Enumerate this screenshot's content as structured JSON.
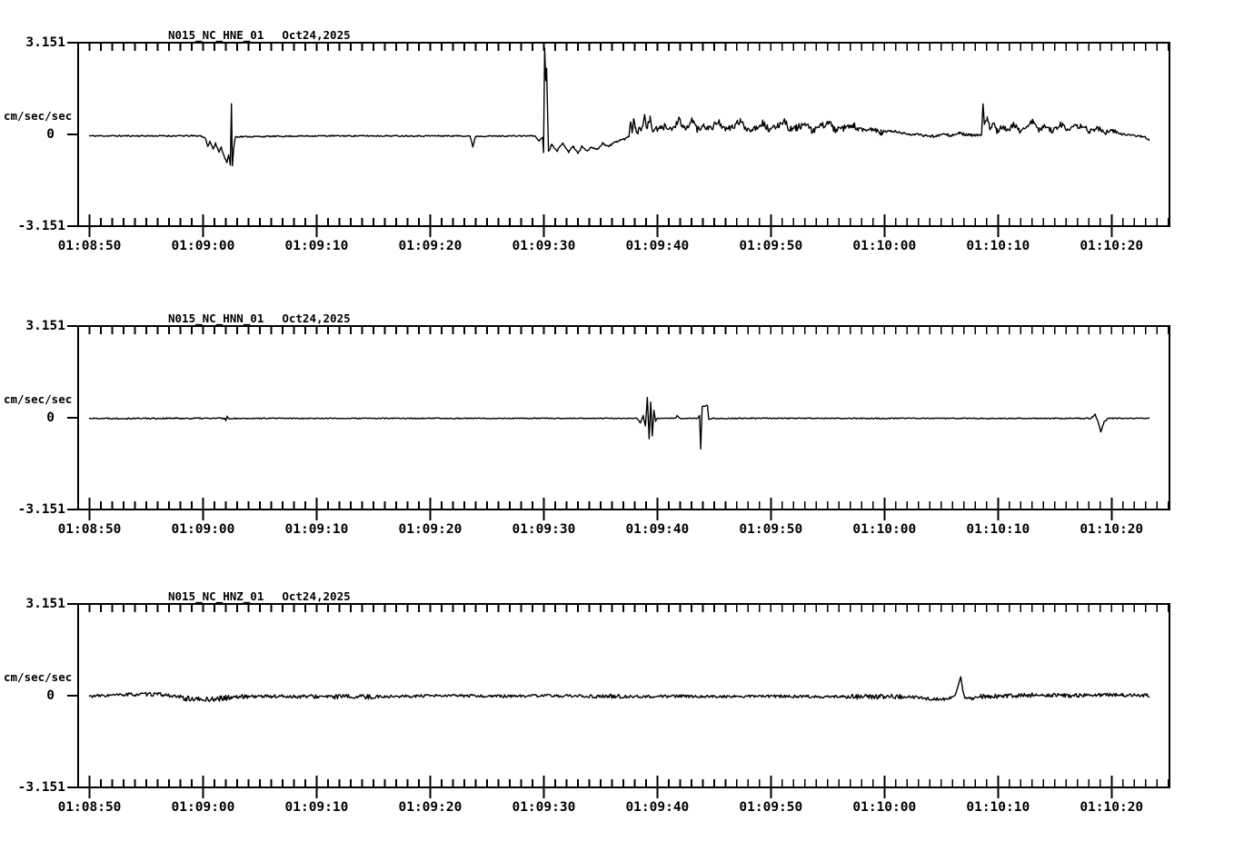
{
  "page": {
    "background_color": "#ffffff",
    "foreground_color": "#000000",
    "description_labels": []
  },
  "chart_data": [
    {
      "type": "line",
      "title": "N015_NC_HNE_01",
      "date": "Oct24,2025",
      "y_axis": {
        "unit_label": "cm/sec/sec",
        "max_label": "3.151",
        "zero_label": "0",
        "min_label": "-3.151",
        "ylim": [
          -3.151,
          3.151
        ]
      },
      "x_axis": {
        "tick_labels": [
          "01:08:50",
          "01:09:00",
          "01:09:10",
          "01:09:20",
          "01:09:30",
          "01:09:40",
          "01:09:50",
          "01:10:00",
          "01:10:10",
          "01:10:20"
        ],
        "tick_seconds": [
          50,
          60,
          70,
          80,
          90,
          100,
          110,
          120,
          130,
          140
        ],
        "window_seconds_after_010800": [
          49.0,
          145.1
        ],
        "minor_tick_interval_sec": 1,
        "major_tick_interval_sec": 10,
        "grid": false
      },
      "trace": {
        "color": "#000000",
        "seed": 11,
        "start_sec": 50,
        "end_sec": 143.3,
        "default_noise": 0.022,
        "noise_envelope": [
          [
            50,
            59.8,
            0.025
          ],
          [
            63,
            89,
            0.022
          ],
          [
            90.5,
            97.5,
            0.035
          ],
          [
            97.6,
            120,
            0.11
          ],
          [
            120,
            128.6,
            0.045
          ],
          [
            128.7,
            140.5,
            0.09
          ],
          [
            140.5,
            143.3,
            0.03
          ]
        ],
        "keypoints": [
          [
            50,
            -0.05
          ],
          [
            59.8,
            -0.05
          ],
          [
            60.2,
            -0.12
          ],
          [
            60.4,
            -0.42
          ],
          [
            60.6,
            -0.25
          ],
          [
            60.9,
            -0.5
          ],
          [
            61.1,
            -0.3
          ],
          [
            61.4,
            -0.62
          ],
          [
            61.6,
            -0.45
          ],
          [
            61.9,
            -0.8
          ],
          [
            62.1,
            -0.95
          ],
          [
            62.25,
            -0.7
          ],
          [
            62.4,
            -1.05
          ],
          [
            62.5,
            1.05
          ],
          [
            62.58,
            -1.1
          ],
          [
            62.7,
            -0.45
          ],
          [
            62.85,
            -0.08
          ],
          [
            70,
            -0.05
          ],
          [
            80,
            -0.05
          ],
          [
            83.5,
            -0.05
          ],
          [
            83.75,
            -0.42
          ],
          [
            84.0,
            -0.06
          ],
          [
            89.2,
            -0.05
          ],
          [
            89.6,
            -0.22
          ],
          [
            89.9,
            -0.1
          ],
          [
            89.98,
            -0.62
          ],
          [
            90.08,
            2.95
          ],
          [
            90.18,
            1.85
          ],
          [
            90.25,
            2.25
          ],
          [
            90.42,
            -0.58
          ],
          [
            90.7,
            -0.35
          ],
          [
            91.2,
            -0.55
          ],
          [
            91.7,
            -0.3
          ],
          [
            92.2,
            -0.6
          ],
          [
            92.6,
            -0.4
          ],
          [
            93.0,
            -0.65
          ],
          [
            93.4,
            -0.4
          ],
          [
            93.8,
            -0.58
          ],
          [
            94.2,
            -0.42
          ],
          [
            94.7,
            -0.52
          ],
          [
            95.2,
            -0.3
          ],
          [
            95.7,
            -0.42
          ],
          [
            96.2,
            -0.28
          ],
          [
            96.7,
            -0.2
          ],
          [
            97.2,
            -0.15
          ],
          [
            97.5,
            -0.06
          ],
          [
            97.65,
            0.5
          ],
          [
            97.78,
            0.12
          ],
          [
            97.92,
            0.58
          ],
          [
            98.05,
            0.18
          ],
          [
            98.3,
            0.12
          ],
          [
            98.6,
            0.2
          ],
          [
            98.9,
            0.62
          ],
          [
            99.1,
            0.18
          ],
          [
            99.35,
            0.55
          ],
          [
            99.6,
            0.15
          ],
          [
            100.2,
            0.18
          ],
          [
            100.8,
            0.3
          ],
          [
            101.3,
            0.15
          ],
          [
            101.9,
            0.5
          ],
          [
            102.3,
            0.18
          ],
          [
            102.8,
            0.3
          ],
          [
            103.1,
            0.52
          ],
          [
            103.5,
            0.15
          ],
          [
            104.2,
            0.28
          ],
          [
            104.8,
            0.2
          ],
          [
            105.4,
            0.48
          ],
          [
            105.9,
            0.15
          ],
          [
            106.6,
            0.25
          ],
          [
            107.3,
            0.45
          ],
          [
            107.9,
            0.18
          ],
          [
            108.6,
            0.22
          ],
          [
            109.3,
            0.4
          ],
          [
            109.9,
            0.12
          ],
          [
            110.6,
            0.3
          ],
          [
            111.2,
            0.5
          ],
          [
            111.6,
            0.18
          ],
          [
            112.2,
            0.22
          ],
          [
            113.0,
            0.35
          ],
          [
            113.6,
            0.12
          ],
          [
            114.4,
            0.28
          ],
          [
            115.1,
            0.42
          ],
          [
            115.7,
            0.12
          ],
          [
            116.5,
            0.22
          ],
          [
            117.3,
            0.3
          ],
          [
            118.1,
            0.1
          ],
          [
            118.9,
            0.18
          ],
          [
            119.7,
            0.06
          ],
          [
            120.6,
            0.12
          ],
          [
            121.6,
            0.04
          ],
          [
            122.6,
            0.0
          ],
          [
            123.6,
            -0.04
          ],
          [
            124.6,
            -0.07
          ],
          [
            125.2,
            0.06
          ],
          [
            125.8,
            -0.05
          ],
          [
            126.6,
            0.04
          ],
          [
            127.4,
            -0.02
          ],
          [
            128.2,
            -0.04
          ],
          [
            128.55,
            -0.02
          ],
          [
            128.68,
            1.06
          ],
          [
            128.8,
            0.28
          ],
          [
            129.05,
            0.55
          ],
          [
            129.3,
            0.18
          ],
          [
            129.6,
            0.45
          ],
          [
            129.9,
            0.12
          ],
          [
            130.4,
            0.3
          ],
          [
            130.9,
            0.12
          ],
          [
            131.4,
            0.35
          ],
          [
            131.9,
            0.1
          ],
          [
            132.5,
            0.28
          ],
          [
            133.1,
            0.45
          ],
          [
            133.6,
            0.12
          ],
          [
            134.2,
            0.3
          ],
          [
            134.8,
            0.1
          ],
          [
            135.5,
            0.38
          ],
          [
            136.1,
            0.12
          ],
          [
            136.7,
            0.25
          ],
          [
            137.4,
            0.3
          ],
          [
            138.1,
            0.1
          ],
          [
            138.8,
            0.22
          ],
          [
            139.5,
            0.06
          ],
          [
            140.2,
            0.1
          ],
          [
            141.0,
            0.0
          ],
          [
            141.8,
            -0.03
          ],
          [
            142.6,
            -0.06
          ],
          [
            143.0,
            -0.1
          ],
          [
            143.3,
            -0.18
          ]
        ]
      }
    },
    {
      "type": "line",
      "title": "N015_NC_HNN_01",
      "date": "Oct24,2025",
      "y_axis": {
        "unit_label": "cm/sec/sec",
        "max_label": "3.151",
        "zero_label": "0",
        "min_label": "-3.151",
        "ylim": [
          -3.151,
          3.151
        ]
      },
      "x_axis": {
        "tick_labels": [
          "01:08:50",
          "01:09:00",
          "01:09:10",
          "01:09:20",
          "01:09:30",
          "01:09:40",
          "01:09:50",
          "01:10:00",
          "01:10:10",
          "01:10:20"
        ],
        "tick_seconds": [
          50,
          60,
          70,
          80,
          90,
          100,
          110,
          120,
          130,
          140
        ],
        "window_seconds_after_010800": [
          49.0,
          145.1
        ],
        "minor_tick_interval_sec": 1,
        "major_tick_interval_sec": 10,
        "grid": false
      },
      "trace": {
        "color": "#000000",
        "seed": 22,
        "start_sec": 50,
        "end_sec": 143.3,
        "default_noise": 0.016,
        "noise_envelope": [
          [
            51.5,
            63,
            0.026
          ],
          [
            61.8,
            62.4,
            0.05
          ],
          [
            104.8,
            110,
            0.022
          ],
          [
            117,
            120,
            0.022
          ],
          [
            135,
            141,
            0.02
          ]
        ],
        "keypoints": [
          [
            50,
            -0.02
          ],
          [
            61.85,
            -0.02
          ],
          [
            62.0,
            -0.08
          ],
          [
            62.1,
            0.04
          ],
          [
            62.2,
            -0.02
          ],
          [
            98.2,
            -0.02
          ],
          [
            98.5,
            -0.18
          ],
          [
            98.75,
            0.08
          ],
          [
            98.95,
            -0.28
          ],
          [
            99.12,
            0.68
          ],
          [
            99.28,
            -0.72
          ],
          [
            99.42,
            0.55
          ],
          [
            99.56,
            -0.62
          ],
          [
            99.7,
            0.25
          ],
          [
            99.85,
            -0.12
          ],
          [
            100.0,
            -0.02
          ],
          [
            101.6,
            -0.02
          ],
          [
            101.75,
            0.07
          ],
          [
            101.95,
            -0.02
          ],
          [
            103.6,
            -0.02
          ],
          [
            103.72,
            0.08
          ],
          [
            103.82,
            -1.08
          ],
          [
            103.95,
            0.4
          ],
          [
            104.42,
            0.42
          ],
          [
            104.52,
            -0.05
          ],
          [
            104.8,
            -0.02
          ],
          [
            138.2,
            -0.02
          ],
          [
            138.55,
            0.12
          ],
          [
            138.85,
            -0.18
          ],
          [
            139.05,
            -0.48
          ],
          [
            139.35,
            -0.14
          ],
          [
            139.7,
            -0.02
          ],
          [
            143.3,
            -0.02
          ]
        ]
      }
    },
    {
      "type": "line",
      "title": "N015_NC_HNZ_01",
      "date": "Oct24,2025",
      "y_axis": {
        "unit_label": "cm/sec/sec",
        "max_label": "3.151",
        "zero_label": "0",
        "min_label": "-3.151",
        "ylim": [
          -3.151,
          3.151
        ]
      },
      "x_axis": {
        "tick_labels": [
          "01:08:50",
          "01:09:00",
          "01:09:10",
          "01:09:20",
          "01:09:30",
          "01:09:40",
          "01:09:50",
          "01:10:00",
          "01:10:10",
          "01:10:20"
        ],
        "tick_seconds": [
          50,
          60,
          70,
          80,
          90,
          100,
          110,
          120,
          130,
          140
        ],
        "window_seconds_after_010800": [
          49.0,
          145.1
        ],
        "minor_tick_interval_sec": 1,
        "major_tick_interval_sec": 10,
        "grid": false
      },
      "trace": {
        "color": "#000000",
        "seed": 33,
        "start_sec": 50,
        "end_sec": 143.3,
        "default_noise": 0.05,
        "noise_envelope": [
          [
            53,
            57,
            0.065
          ],
          [
            58,
            62.5,
            0.09
          ],
          [
            63,
            70,
            0.07
          ],
          [
            71.5,
            75.5,
            0.08
          ],
          [
            94,
            97,
            0.075
          ],
          [
            117,
            121.5,
            0.085
          ],
          [
            126.3,
            127.2,
            0.02
          ],
          [
            128.5,
            133,
            0.075
          ],
          [
            134,
            138,
            0.07
          ],
          [
            139,
            143.3,
            0.06
          ]
        ],
        "keypoints": [
          [
            50,
            -0.02
          ],
          [
            53.5,
            0.04
          ],
          [
            56,
            0.05
          ],
          [
            57.5,
            -0.02
          ],
          [
            58.5,
            -0.1
          ],
          [
            60,
            -0.14
          ],
          [
            61.5,
            -0.1
          ],
          [
            62.5,
            -0.05
          ],
          [
            64,
            -0.02
          ],
          [
            70,
            -0.03
          ],
          [
            74,
            -0.04
          ],
          [
            78,
            -0.02
          ],
          [
            82,
            0.0
          ],
          [
            86,
            -0.02
          ],
          [
            90,
            0.0
          ],
          [
            94,
            -0.02
          ],
          [
            98,
            -0.03
          ],
          [
            102,
            -0.02
          ],
          [
            106,
            -0.03
          ],
          [
            110,
            -0.02
          ],
          [
            114,
            -0.03
          ],
          [
            118,
            -0.04
          ],
          [
            121,
            -0.02
          ],
          [
            122.5,
            -0.05
          ],
          [
            124,
            -0.11
          ],
          [
            125.3,
            -0.12
          ],
          [
            126.1,
            -0.05
          ],
          [
            126.4,
            0.2
          ],
          [
            126.72,
            0.66
          ],
          [
            126.9,
            0.18
          ],
          [
            127.1,
            -0.08
          ],
          [
            127.7,
            -0.1
          ],
          [
            128.5,
            -0.03
          ],
          [
            130,
            -0.02
          ],
          [
            133,
            0.02
          ],
          [
            136,
            0.0
          ],
          [
            139,
            0.03
          ],
          [
            141,
            0.02
          ],
          [
            143.3,
            0.0
          ]
        ]
      }
    }
  ]
}
